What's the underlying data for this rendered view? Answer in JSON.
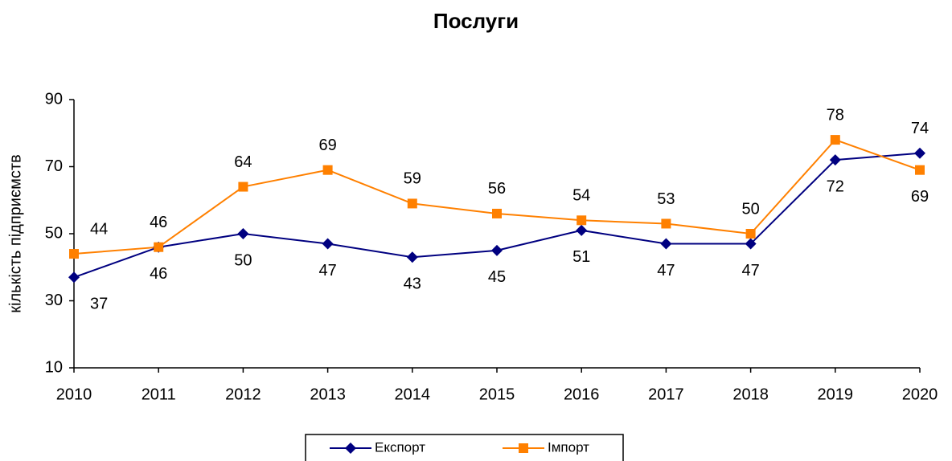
{
  "chart_data": {
    "type": "line",
    "title": "Послуги",
    "ylabel": "кількість підприємств",
    "x": [
      2010,
      2011,
      2012,
      2013,
      2014,
      2015,
      2016,
      2017,
      2018,
      2019,
      2020
    ],
    "series": [
      {
        "name": "Експорт",
        "color": "#000080",
        "marker": "diamond",
        "values": [
          37,
          46,
          50,
          47,
          43,
          45,
          51,
          47,
          47,
          72,
          74
        ]
      },
      {
        "name": "Імпорт",
        "color": "#ff8000",
        "marker": "square",
        "values": [
          44,
          46,
          64,
          69,
          59,
          56,
          54,
          53,
          50,
          78,
          69
        ]
      }
    ],
    "xlim": [
      2010,
      2020
    ],
    "xticks": [
      2010,
      2011,
      2012,
      2013,
      2014,
      2015,
      2016,
      2017,
      2018,
      2019,
      2020
    ],
    "ylim": [
      10,
      90
    ],
    "yticks": [
      10,
      30,
      50,
      70,
      90
    ],
    "grid": false,
    "legend": "bottom"
  }
}
